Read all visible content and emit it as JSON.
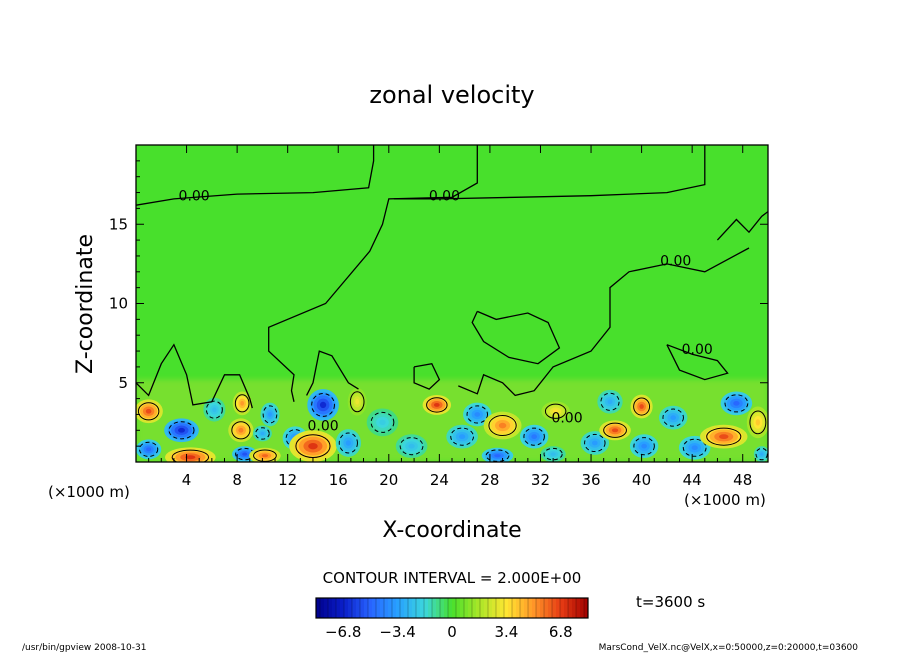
{
  "chart_data": {
    "type": "heatmap",
    "title": "zonal velocity",
    "xlabel": "X-coordinate",
    "ylabel": "Z-coordinate",
    "x_unit_left": "(×1000 m)",
    "x_unit_right": "(×1000 m)",
    "x_ticks": [
      "4",
      "8",
      "12",
      "16",
      "20",
      "24",
      "28",
      "32",
      "36",
      "40",
      "44",
      "48"
    ],
    "y_ticks": [
      "5",
      "10",
      "15"
    ],
    "xlim": [
      0,
      50
    ],
    "ylim": [
      0,
      20
    ],
    "contour_labels": [
      {
        "text": "0.00",
        "x": 4.6,
        "y": 16.5
      },
      {
        "text": "0.00",
        "x": 24.4,
        "y": 16.5
      },
      {
        "text": "0.00",
        "x": 42.7,
        "y": 12.4
      },
      {
        "text": "0.00",
        "x": 44.4,
        "y": 6.8
      },
      {
        "text": "0.00",
        "x": 14.8,
        "y": 2.0
      },
      {
        "text": "0.00",
        "x": 34.1,
        "y": 2.5
      }
    ],
    "anomalies": [
      {
        "x": 1.0,
        "y": 3.2,
        "sx": 0.9,
        "sy": 0.6,
        "v": 6.5
      },
      {
        "x": 1.0,
        "y": 0.8,
        "sx": 0.8,
        "sy": 0.5,
        "v": -5.0
      },
      {
        "x": 3.6,
        "y": 2.0,
        "sx": 1.1,
        "sy": 0.6,
        "v": -6.5
      },
      {
        "x": 4.3,
        "y": 0.3,
        "sx": 1.6,
        "sy": 0.5,
        "v": 7.0
      },
      {
        "x": 6.2,
        "y": 3.3,
        "sx": 0.7,
        "sy": 0.6,
        "v": -2.5
      },
      {
        "x": 8.3,
        "y": 2.0,
        "sx": 0.8,
        "sy": 0.6,
        "v": 5.5
      },
      {
        "x": 8.6,
        "y": 0.5,
        "sx": 0.8,
        "sy": 0.4,
        "v": -5.5
      },
      {
        "x": 8.4,
        "y": 3.7,
        "sx": 0.6,
        "sy": 0.6,
        "v": 5.0
      },
      {
        "x": 10.2,
        "y": 0.4,
        "sx": 1.0,
        "sy": 0.4,
        "v": 6.0
      },
      {
        "x": 10.6,
        "y": 3.0,
        "sx": 0.6,
        "sy": 0.6,
        "v": -3.5
      },
      {
        "x": 10.0,
        "y": 1.8,
        "sx": 0.6,
        "sy": 0.4,
        "v": -3.0
      },
      {
        "x": 12.6,
        "y": 1.5,
        "sx": 0.8,
        "sy": 0.6,
        "v": -4.0
      },
      {
        "x": 14.0,
        "y": 1.0,
        "sx": 1.5,
        "sy": 0.8,
        "v": 7.0
      },
      {
        "x": 14.8,
        "y": 3.6,
        "sx": 1.0,
        "sy": 0.8,
        "v": -6.5
      },
      {
        "x": 16.8,
        "y": 1.2,
        "sx": 0.8,
        "sy": 0.7,
        "v": -3.5
      },
      {
        "x": 17.5,
        "y": 3.8,
        "sx": 0.6,
        "sy": 0.7,
        "v": 3.0
      },
      {
        "x": 19.5,
        "y": 2.5,
        "sx": 1.0,
        "sy": 0.7,
        "v": -2.0
      },
      {
        "x": 21.8,
        "y": 1.0,
        "sx": 1.0,
        "sy": 0.6,
        "v": -2.5
      },
      {
        "x": 23.8,
        "y": 3.6,
        "sx": 0.9,
        "sy": 0.5,
        "v": 7.0
      },
      {
        "x": 25.8,
        "y": 1.6,
        "sx": 1.0,
        "sy": 0.6,
        "v": -3.5
      },
      {
        "x": 27.0,
        "y": 3.0,
        "sx": 0.9,
        "sy": 0.6,
        "v": -4.0
      },
      {
        "x": 29.0,
        "y": 2.3,
        "sx": 1.2,
        "sy": 0.7,
        "v": 5.5
      },
      {
        "x": 28.6,
        "y": 0.4,
        "sx": 1.0,
        "sy": 0.4,
        "v": -5.0
      },
      {
        "x": 31.5,
        "y": 1.6,
        "sx": 0.9,
        "sy": 0.6,
        "v": -4.5
      },
      {
        "x": 33.2,
        "y": 3.2,
        "sx": 0.9,
        "sy": 0.5,
        "v": 3.5
      },
      {
        "x": 33.0,
        "y": 0.5,
        "sx": 0.8,
        "sy": 0.4,
        "v": -2.5
      },
      {
        "x": 36.3,
        "y": 1.2,
        "sx": 0.9,
        "sy": 0.6,
        "v": -3.5
      },
      {
        "x": 37.9,
        "y": 2.0,
        "sx": 1.0,
        "sy": 0.5,
        "v": 6.5
      },
      {
        "x": 37.5,
        "y": 3.8,
        "sx": 0.8,
        "sy": 0.6,
        "v": -3.0
      },
      {
        "x": 40.0,
        "y": 3.5,
        "sx": 0.7,
        "sy": 0.6,
        "v": 6.5
      },
      {
        "x": 40.2,
        "y": 1.0,
        "sx": 0.9,
        "sy": 0.6,
        "v": -4.0
      },
      {
        "x": 42.5,
        "y": 2.8,
        "sx": 0.9,
        "sy": 0.6,
        "v": -3.5
      },
      {
        "x": 44.2,
        "y": 0.9,
        "sx": 1.0,
        "sy": 0.6,
        "v": -4.0
      },
      {
        "x": 46.5,
        "y": 1.6,
        "sx": 1.5,
        "sy": 0.6,
        "v": 6.5
      },
      {
        "x": 47.5,
        "y": 3.7,
        "sx": 1.0,
        "sy": 0.6,
        "v": -5.0
      },
      {
        "x": 49.2,
        "y": 2.5,
        "sx": 0.7,
        "sy": 0.8,
        "v": 4.0
      },
      {
        "x": 49.5,
        "y": 0.5,
        "sx": 0.5,
        "sy": 0.4,
        "v": -3.0
      }
    ],
    "contour_interval_text": "CONTOUR INTERVAL = 2.000E+00",
    "colorbar": {
      "min": -8.5,
      "max": 8.5,
      "tick_labels": [
        "−6.8",
        "−3.4",
        "0",
        "3.4",
        "6.8"
      ],
      "tick_values": [
        -6.8,
        -3.4,
        0,
        3.4,
        6.8
      ]
    },
    "time_label": "t=3600 s",
    "footer_left": "/usr/bin/gpview   2008-10-31",
    "footer_right": "MarsCond_VelX.nc@VelX,x=0:50000,z=0:20000,t=03600"
  }
}
